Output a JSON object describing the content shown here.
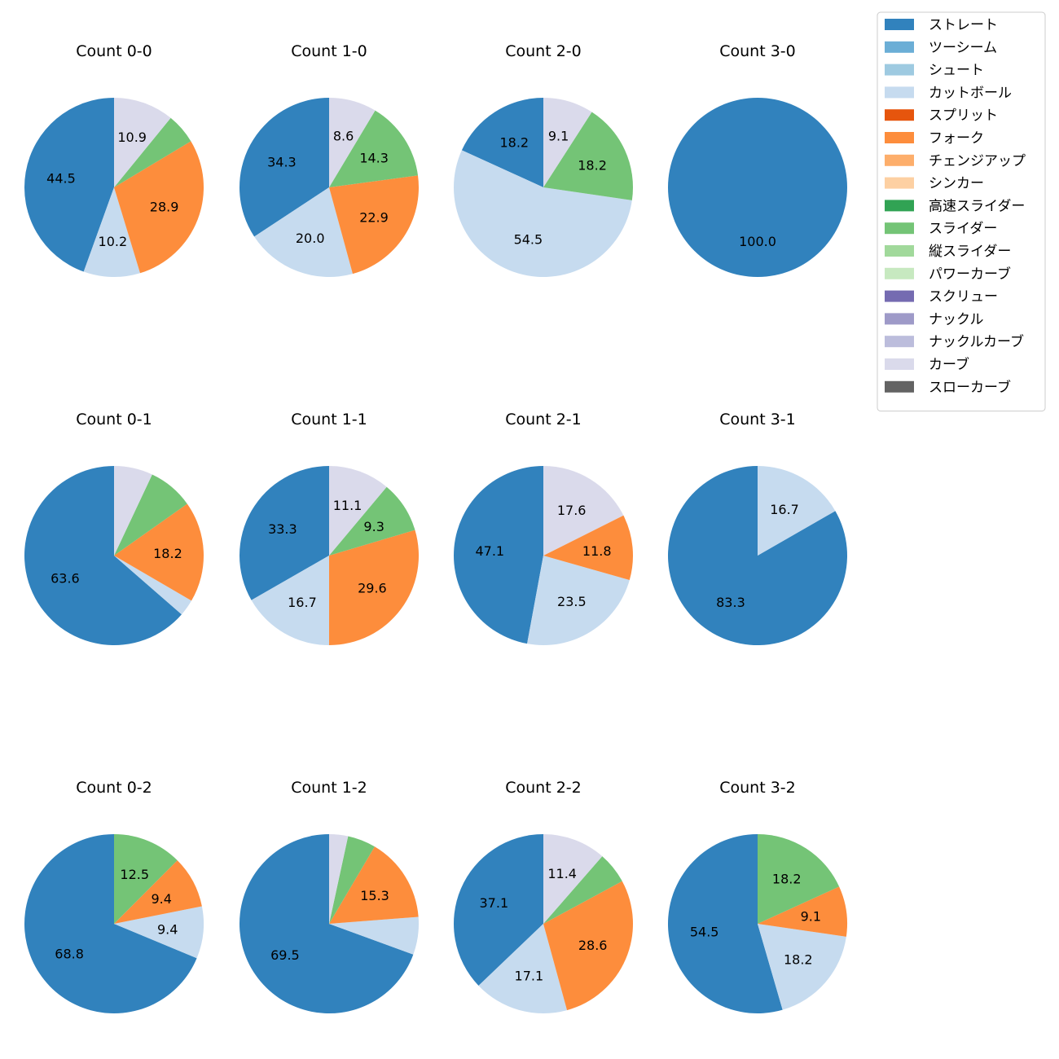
{
  "chart_data": {
    "type": "pie",
    "legend": {
      "placement": "top-right",
      "entries": [
        {
          "name": "ストレート",
          "color": "#3182bd"
        },
        {
          "name": "ツーシーム",
          "color": "#6baed6"
        },
        {
          "name": "シュート",
          "color": "#9ecae1"
        },
        {
          "name": "カットボール",
          "color": "#c6dbef"
        },
        {
          "name": "スプリット",
          "color": "#e6550d"
        },
        {
          "name": "フォーク",
          "color": "#fd8d3c"
        },
        {
          "name": "チェンジアップ",
          "color": "#fdae6b"
        },
        {
          "name": "シンカー",
          "color": "#fdd0a2"
        },
        {
          "name": "高速スライダー",
          "color": "#31a354"
        },
        {
          "name": "スライダー",
          "color": "#74c476"
        },
        {
          "name": "縦スライダー",
          "color": "#a1d99b"
        },
        {
          "name": "パワーカーブ",
          "color": "#c7e9c0"
        },
        {
          "name": "スクリュー",
          "color": "#756bb1"
        },
        {
          "name": "ナックル",
          "color": "#9e9ac8"
        },
        {
          "name": "ナックルカーブ",
          "color": "#bcbddc"
        },
        {
          "name": "カーブ",
          "color": "#dadaeb"
        },
        {
          "name": "スローカーブ",
          "color": "#636363"
        }
      ]
    },
    "pies": [
      {
        "title": "Count 0-0",
        "slices": [
          {
            "pitch": "ストレート",
            "value": 44.5,
            "label": "44.5"
          },
          {
            "pitch": "カットボール",
            "value": 10.2,
            "label": "10.2"
          },
          {
            "pitch": "フォーク",
            "value": 28.9,
            "label": "28.9"
          },
          {
            "pitch": "スライダー",
            "value": 5.5,
            "label": ""
          },
          {
            "pitch": "カーブ",
            "value": 10.9,
            "label": "10.9"
          }
        ]
      },
      {
        "title": "Count 1-0",
        "slices": [
          {
            "pitch": "ストレート",
            "value": 34.3,
            "label": "34.3"
          },
          {
            "pitch": "カットボール",
            "value": 20.0,
            "label": "20.0"
          },
          {
            "pitch": "フォーク",
            "value": 22.9,
            "label": "22.9"
          },
          {
            "pitch": "スライダー",
            "value": 14.3,
            "label": "14.3"
          },
          {
            "pitch": "カーブ",
            "value": 8.6,
            "label": "8.6"
          }
        ]
      },
      {
        "title": "Count 2-0",
        "slices": [
          {
            "pitch": "ストレート",
            "value": 18.2,
            "label": "18.2"
          },
          {
            "pitch": "カットボール",
            "value": 54.5,
            "label": "54.5"
          },
          {
            "pitch": "スライダー",
            "value": 18.2,
            "label": "18.2"
          },
          {
            "pitch": "カーブ",
            "value": 9.1,
            "label": "9.1"
          }
        ]
      },
      {
        "title": "Count 3-0",
        "slices": [
          {
            "pitch": "ストレート",
            "value": 100.0,
            "label": "100.0"
          }
        ]
      },
      {
        "title": "Count 0-1",
        "slices": [
          {
            "pitch": "ストレート",
            "value": 63.6,
            "label": "63.6"
          },
          {
            "pitch": "カットボール",
            "value": 3.0,
            "label": ""
          },
          {
            "pitch": "フォーク",
            "value": 18.2,
            "label": "18.2"
          },
          {
            "pitch": "スライダー",
            "value": 8.2,
            "label": ""
          },
          {
            "pitch": "カーブ",
            "value": 7.0,
            "label": ""
          }
        ]
      },
      {
        "title": "Count 1-1",
        "slices": [
          {
            "pitch": "ストレート",
            "value": 33.3,
            "label": "33.3"
          },
          {
            "pitch": "カットボール",
            "value": 16.7,
            "label": "16.7"
          },
          {
            "pitch": "フォーク",
            "value": 29.6,
            "label": "29.6"
          },
          {
            "pitch": "スライダー",
            "value": 9.3,
            "label": "9.3"
          },
          {
            "pitch": "カーブ",
            "value": 11.1,
            "label": "11.1"
          }
        ]
      },
      {
        "title": "Count 2-1",
        "slices": [
          {
            "pitch": "ストレート",
            "value": 47.1,
            "label": "47.1"
          },
          {
            "pitch": "カットボール",
            "value": 23.5,
            "label": "23.5"
          },
          {
            "pitch": "フォーク",
            "value": 11.8,
            "label": "11.8"
          },
          {
            "pitch": "カーブ",
            "value": 17.6,
            "label": "17.6"
          }
        ]
      },
      {
        "title": "Count 3-1",
        "slices": [
          {
            "pitch": "ストレート",
            "value": 83.3,
            "label": "83.3"
          },
          {
            "pitch": "カットボール",
            "value": 16.7,
            "label": "16.7"
          }
        ]
      },
      {
        "title": "Count 0-2",
        "slices": [
          {
            "pitch": "ストレート",
            "value": 68.8,
            "label": "68.8"
          },
          {
            "pitch": "カットボール",
            "value": 9.4,
            "label": "9.4"
          },
          {
            "pitch": "フォーク",
            "value": 9.4,
            "label": "9.4"
          },
          {
            "pitch": "スライダー",
            "value": 12.5,
            "label": "12.5"
          }
        ]
      },
      {
        "title": "Count 1-2",
        "slices": [
          {
            "pitch": "ストレート",
            "value": 69.5,
            "label": "69.5"
          },
          {
            "pitch": "カットボール",
            "value": 6.8,
            "label": ""
          },
          {
            "pitch": "フォーク",
            "value": 15.3,
            "label": "15.3"
          },
          {
            "pitch": "スライダー",
            "value": 5.1,
            "label": ""
          },
          {
            "pitch": "カーブ",
            "value": 3.4,
            "label": ""
          }
        ]
      },
      {
        "title": "Count 2-2",
        "slices": [
          {
            "pitch": "ストレート",
            "value": 37.1,
            "label": "37.1"
          },
          {
            "pitch": "カットボール",
            "value": 17.1,
            "label": "17.1"
          },
          {
            "pitch": "フォーク",
            "value": 28.6,
            "label": "28.6"
          },
          {
            "pitch": "スライダー",
            "value": 5.7,
            "label": ""
          },
          {
            "pitch": "カーブ",
            "value": 11.4,
            "label": "11.4"
          }
        ]
      },
      {
        "title": "Count 3-2",
        "slices": [
          {
            "pitch": "ストレート",
            "value": 54.5,
            "label": "54.5"
          },
          {
            "pitch": "カットボール",
            "value": 18.2,
            "label": "18.2"
          },
          {
            "pitch": "フォーク",
            "value": 9.1,
            "label": "9.1"
          },
          {
            "pitch": "スライダー",
            "value": 18.2,
            "label": "18.2"
          }
        ]
      }
    ]
  }
}
